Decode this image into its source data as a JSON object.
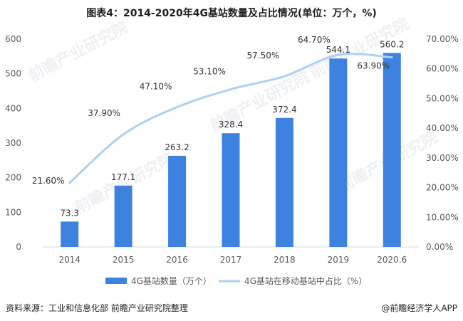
{
  "colors": {
    "bar": "#3e82e0",
    "line": "#aed0f2",
    "axis_text": "#595959",
    "grid": "#d9d9d9"
  },
  "chart_data": {
    "type": "bar+line",
    "title": "图表4：2014-2020年4G基站数量及占比情况(单位：万个，%)",
    "categories": [
      "2014",
      "2015",
      "2016",
      "2017",
      "2018",
      "2019",
      "2020.6"
    ],
    "series": [
      {
        "name": "4G基站数量（万个）",
        "type": "bar",
        "axis": "left",
        "values": [
          73.3,
          177.1,
          263.2,
          328.4,
          372.4,
          544.1,
          560.2
        ],
        "labels": [
          "73.3",
          "177.1",
          "263.2",
          "328.4",
          "372.4",
          "544.1",
          "560.2"
        ]
      },
      {
        "name": "4G基站在移动基站中占比（%）",
        "type": "line",
        "axis": "right",
        "values": [
          21.6,
          37.9,
          47.1,
          53.1,
          57.5,
          64.7,
          63.9
        ],
        "labels": [
          "21.60%",
          "37.90%",
          "47.10%",
          "53.10%",
          "57.50%",
          "64.70%",
          "63.90%"
        ]
      }
    ],
    "y_left": {
      "min": 0,
      "max": 600,
      "ticks": [
        "0",
        "100",
        "200",
        "300",
        "400",
        "500",
        "600"
      ]
    },
    "y_right": {
      "min": 0,
      "max": 70,
      "ticks": [
        "0.00%",
        "10.00%",
        "20.00%",
        "30.00%",
        "40.00%",
        "50.00%",
        "60.00%",
        "70.00%"
      ]
    },
    "legend_position": "bottom-center",
    "grid": false
  },
  "footer": {
    "source": "资料来源：工业和信息化部 前瞻产业研究院整理",
    "brand": "@前瞻经济学人APP"
  }
}
